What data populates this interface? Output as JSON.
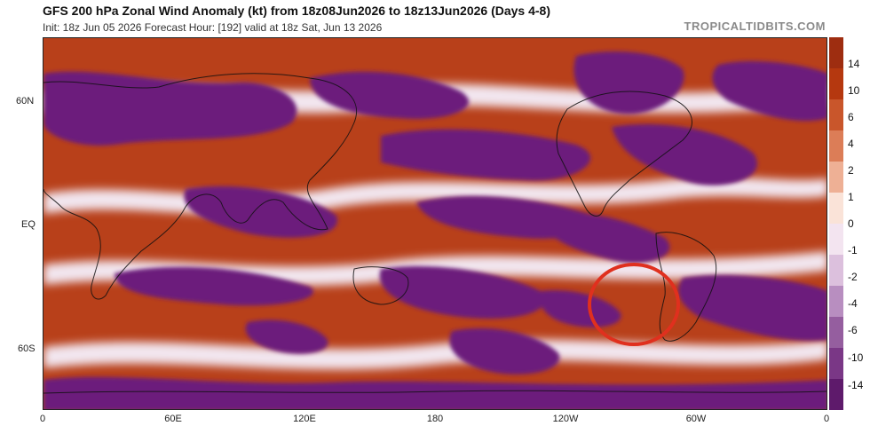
{
  "header": {
    "title": "GFS 200 hPa Zonal Wind Anomaly (kt) from 18z08Jun2026 to 18z13Jun2026 (Days 4-8)",
    "subtitle": "Init: 18z Jun 05 2026   Forecast Hour: [192]   valid at 18z Sat, Jun 13 2026",
    "brand": "TROPICALTIDBITS.COM"
  },
  "map": {
    "lat_labels": [
      "60N",
      "EQ",
      "60S"
    ],
    "lon_labels": [
      "0",
      "60E",
      "120E",
      "180",
      "120W",
      "60W",
      "0"
    ],
    "highlight": "red circle over the southeast Pacific off Chile",
    "colors": {
      "positive": "#b5380f",
      "negative": "#6a1a78",
      "neutral": "#ffffff",
      "highlight": "#e0301e"
    }
  },
  "colorbar": {
    "labels": [
      "14",
      "10",
      "6",
      "4",
      "2",
      "1",
      "0",
      "-1",
      "-2",
      "-4",
      "-6",
      "-10",
      "-14"
    ]
  }
}
